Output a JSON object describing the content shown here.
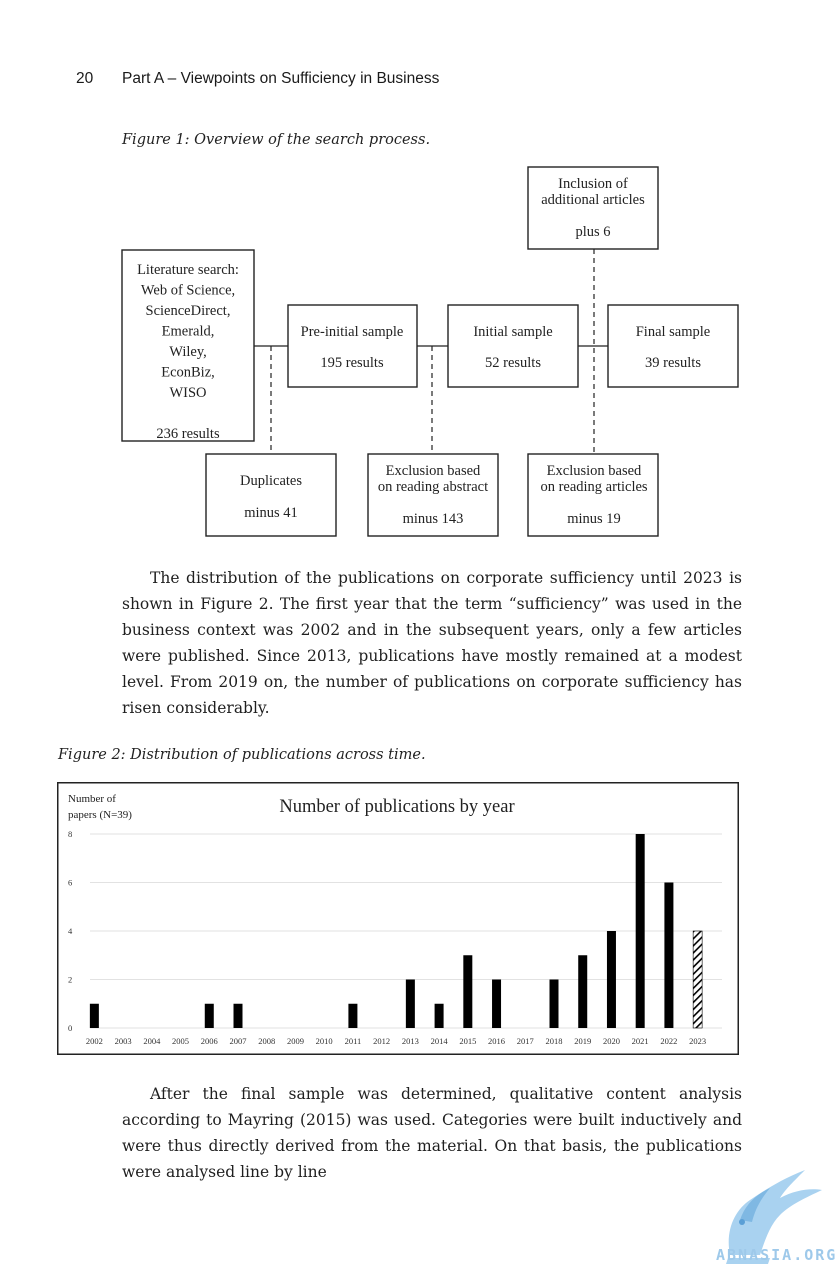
{
  "header": {
    "page_number": "20",
    "running_title": "Part A – Viewpoints on Sufficiency in Business"
  },
  "figure1": {
    "caption": "Figure 1: Overview of the search process.",
    "boxes": {
      "literature": {
        "lines": [
          "Literature search:",
          "Web of Science,",
          "ScienceDirect,",
          "Emerald,",
          "Wiley,",
          "EconBiz,",
          "WISO",
          "",
          "236 results"
        ]
      },
      "pre_initial": {
        "lines": [
          "Pre-initial sample",
          "",
          "195 results"
        ]
      },
      "initial": {
        "lines": [
          "Initial sample",
          "",
          "52 results"
        ]
      },
      "final": {
        "lines": [
          "Final sample",
          "",
          "39 results"
        ]
      },
      "inclusion": {
        "lines": [
          "Inclusion of",
          "additional articles",
          "",
          "plus 6"
        ]
      },
      "duplicates": {
        "lines": [
          "Duplicates",
          "",
          "minus 41"
        ]
      },
      "excl_abstract": {
        "lines": [
          "Exclusion based",
          "on reading abstract",
          "",
          "minus 143"
        ]
      },
      "excl_articles": {
        "lines": [
          "Exclusion based",
          "on reading articles",
          "",
          "minus 19"
        ]
      }
    }
  },
  "paragraph1": "The distribution of the publications on corporate sufficiency until 2023 is shown in Figure 2. The first year that the term “sufficiency” was used in the business context was 2002 and in the subsequent years, only a few articles were published. Since 2013, publications have mostly remained at a modest level. From 2019 on, the number of publications on corporate sufficiency has risen considerably.",
  "figure2": {
    "caption": "Figure 2: Distribution of publications across time."
  },
  "chart_data": {
    "type": "bar",
    "title": "Number of publications by year",
    "ylabel": "Number of papers (N=39)",
    "ylabel_lines": [
      "Number of",
      "papers (N=39)"
    ],
    "xlabel": "",
    "ylim": [
      0,
      8
    ],
    "yticks": [
      "0",
      "2",
      "4",
      "6",
      "8"
    ],
    "categories": [
      "2002",
      "2003",
      "2004",
      "2005",
      "2006",
      "2007",
      "2008",
      "2009",
      "2010",
      "2011",
      "2012",
      "2013",
      "2014",
      "2015",
      "2016",
      "2017",
      "2018",
      "2019",
      "2020",
      "2021",
      "2022",
      "2023"
    ],
    "values": [
      1,
      0,
      0,
      0,
      1,
      1,
      0,
      0,
      0,
      1,
      0,
      2,
      1,
      3,
      2,
      0,
      2,
      3,
      4,
      8,
      6,
      4
    ],
    "hatched_categories": [
      "2023"
    ],
    "grid": true,
    "bar_color": "#000000"
  },
  "paragraph2": "After the final sample was determined, qualitative content analysis according to Mayring (2015) was used. Categories were built inductively and were thus directly derived from the material. On that basis, the publications were analysed line by line",
  "watermark": {
    "text": "ABNASIA.ORG",
    "color": "#9ec9ea"
  }
}
